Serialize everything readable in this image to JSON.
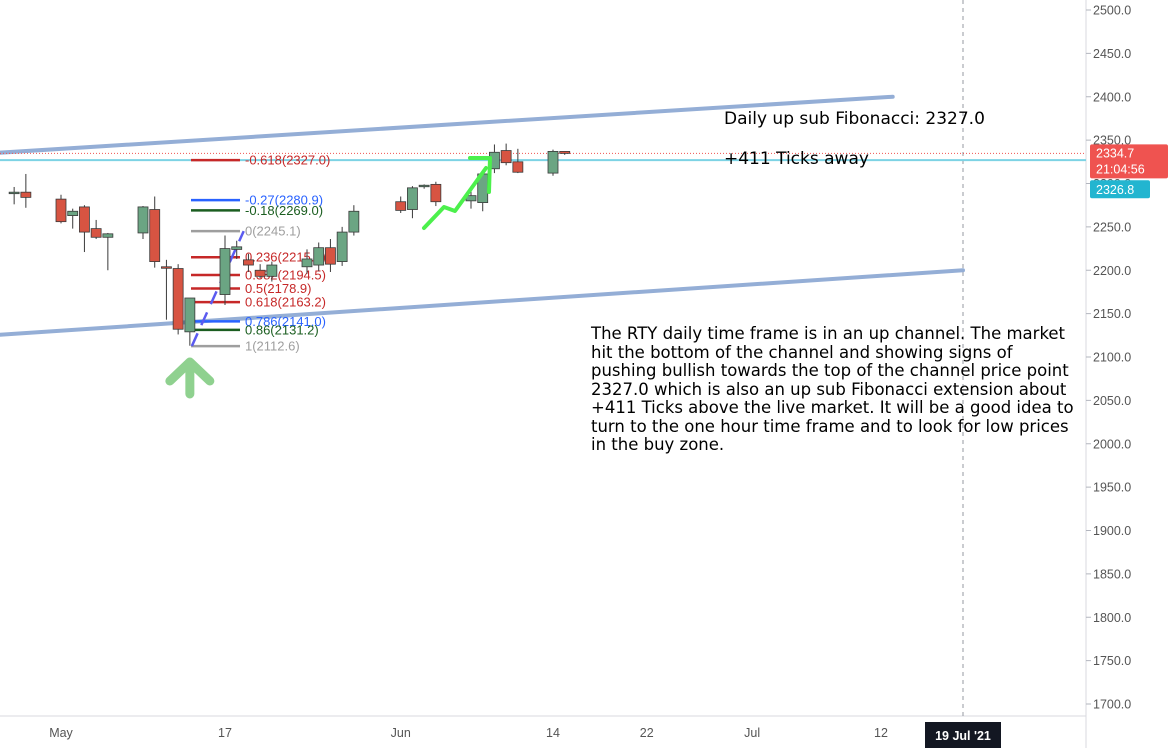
{
  "chart_data": {
    "type": "candlestick",
    "symbol": "RTY",
    "timeframe": "daily",
    "price_axis": {
      "ylim": [
        1680,
        2520
      ],
      "ticks": [
        2500.0,
        2450.0,
        2400.0,
        2350.0,
        2300.0,
        2250.0,
        2200.0,
        2150.0,
        2100.0,
        2050.0,
        2000.0,
        1950.0,
        1900.0,
        1850.0,
        1800.0,
        1750.0,
        1700.0
      ]
    },
    "time_axis": {
      "ticks": [
        {
          "label": "May",
          "date": "2021-05-03"
        },
        {
          "label": "17",
          "date": "2021-05-17"
        },
        {
          "label": "Jun",
          "date": "2021-06-01"
        },
        {
          "label": "14",
          "date": "2021-06-14"
        },
        {
          "label": "22",
          "date": "2021-06-22"
        },
        {
          "label": "Jul",
          "date": "2021-07-01"
        },
        {
          "label": "12",
          "date": "2021-07-12"
        }
      ],
      "cursor_label": "19 Jul '21",
      "cursor_date": "2021-07-19"
    },
    "candles": [
      {
        "date": "2021-04-29",
        "open": 2289,
        "high": 2296,
        "low": 2276,
        "close": 2290
      },
      {
        "date": "2021-04-30",
        "open": 2290,
        "high": 2311,
        "low": 2272,
        "close": 2284
      },
      {
        "date": "2021-05-03",
        "open": 2282,
        "high": 2287,
        "low": 2254,
        "close": 2256
      },
      {
        "date": "2021-05-04",
        "open": 2263,
        "high": 2271,
        "low": 2248,
        "close": 2268
      },
      {
        "date": "2021-05-05",
        "open": 2273,
        "high": 2275,
        "low": 2221,
        "close": 2244
      },
      {
        "date": "2021-05-06",
        "open": 2248,
        "high": 2258,
        "low": 2236,
        "close": 2238
      },
      {
        "date": "2021-05-07",
        "open": 2238,
        "high": 2243,
        "low": 2200,
        "close": 2242
      },
      {
        "date": "2021-05-10",
        "open": 2243,
        "high": 2274,
        "low": 2236,
        "close": 2273
      },
      {
        "date": "2021-05-11",
        "open": 2270,
        "high": 2285,
        "low": 2203,
        "close": 2210
      },
      {
        "date": "2021-05-12",
        "open": 2204,
        "high": 2212,
        "low": 2143,
        "close": 2203
      },
      {
        "date": "2021-05-13",
        "open": 2202,
        "high": 2207,
        "low": 2126,
        "close": 2132
      },
      {
        "date": "2021-05-14",
        "open": 2129,
        "high": 2167,
        "low": 2113,
        "close": 2168
      },
      {
        "date": "2021-05-17",
        "open": 2172,
        "high": 2240,
        "low": 2160,
        "close": 2225
      },
      {
        "date": "2021-05-18",
        "open": 2224,
        "high": 2234,
        "low": 2213,
        "close": 2227
      },
      {
        "date": "2021-05-19",
        "open": 2212,
        "high": 2219,
        "low": 2198,
        "close": 2206
      },
      {
        "date": "2021-05-20",
        "open": 2200,
        "high": 2207,
        "low": 2191,
        "close": 2193
      },
      {
        "date": "2021-05-21",
        "open": 2193,
        "high": 2210,
        "low": 2187,
        "close": 2206
      },
      {
        "date": "2021-05-24",
        "open": 2204,
        "high": 2224,
        "low": 2196,
        "close": 2213
      },
      {
        "date": "2021-05-25",
        "open": 2206,
        "high": 2232,
        "low": 2199,
        "close": 2226
      },
      {
        "date": "2021-05-26",
        "open": 2226,
        "high": 2236,
        "low": 2198,
        "close": 2207
      },
      {
        "date": "2021-05-27",
        "open": 2210,
        "high": 2250,
        "low": 2205,
        "close": 2244
      },
      {
        "date": "2021-05-28",
        "open": 2244,
        "high": 2275,
        "low": 2240,
        "close": 2268
      },
      {
        "date": "2021-06-01",
        "open": 2279,
        "high": 2285,
        "low": 2266,
        "close": 2269
      },
      {
        "date": "2021-06-02",
        "open": 2270,
        "high": 2297,
        "low": 2260,
        "close": 2295
      },
      {
        "date": "2021-06-03",
        "open": 2297,
        "high": 2299,
        "low": 2294,
        "close": 2298
      },
      {
        "date": "2021-06-04",
        "open": 2299,
        "high": 2302,
        "low": 2274,
        "close": 2279
      },
      {
        "date": "2021-06-07",
        "open": 2280,
        "high": 2297,
        "low": 2271,
        "close": 2286
      },
      {
        "date": "2021-06-08",
        "open": 2278,
        "high": 2313,
        "low": 2268,
        "close": 2311
      },
      {
        "date": "2021-06-09",
        "open": 2317,
        "high": 2345,
        "low": 2312,
        "close": 2336
      },
      {
        "date": "2021-06-10",
        "open": 2338,
        "high": 2346,
        "low": 2321,
        "close": 2324
      },
      {
        "date": "2021-06-11",
        "open": 2325,
        "high": 2340,
        "low": 2312,
        "close": 2313
      },
      {
        "date": "2021-06-14",
        "open": 2312,
        "high": 2339,
        "low": 2309,
        "close": 2337
      },
      {
        "date": "2021-06-15",
        "open": 2337,
        "high": 2337,
        "low": 2333,
        "close": 2334.7
      }
    ],
    "price_labels": [
      {
        "value": "2334.7",
        "countdown": "21:04:56",
        "price": 2334.7,
        "color": "#ef5350"
      },
      {
        "value": "2326.8",
        "price": 2326.8,
        "color": "#22b5d0"
      }
    ],
    "fibonacci_levels": [
      {
        "label": "-0.618(2327.0)",
        "price": 2327.0,
        "color": "#c62828"
      },
      {
        "label": "-0.27(2280.9)",
        "price": 2280.9,
        "color": "#2962ff"
      },
      {
        "label": "-0.18(2269.0)",
        "price": 2269.0,
        "color": "#1b5e20"
      },
      {
        "label": "0(2245.1)",
        "price": 2245.1,
        "color": "#9e9e9e"
      },
      {
        "label": "0.236(2215.0)",
        "price": 2215.0,
        "color": "#c62828"
      },
      {
        "label": "0.382(2194.5)",
        "price": 2194.5,
        "color": "#c62828"
      },
      {
        "label": "0.5(2178.9)",
        "price": 2178.9,
        "color": "#c62828"
      },
      {
        "label": "0.618(2163.2)",
        "price": 2163.2,
        "color": "#c62828"
      },
      {
        "label": "0.786(2141.0)",
        "price": 2141.0,
        "color": "#2962ff"
      },
      {
        "label": "0.86(2131.2)",
        "price": 2131.2,
        "color": "#1b5e20"
      },
      {
        "label": "1(2112.6)",
        "price": 2112.6,
        "color": "#9e9e9e"
      }
    ],
    "channel_lines": [
      {
        "name": "upper",
        "from": {
          "date": "2021-04-26",
          "price": 2334
        },
        "to": {
          "date": "2021-07-13",
          "price": 2400
        },
        "color": "#94aed6"
      },
      {
        "name": "lower",
        "from": {
          "date": "2021-04-26",
          "price": 2124
        },
        "to": {
          "date": "2021-07-19",
          "price": 2200
        },
        "color": "#94aed6"
      }
    ],
    "target_line": {
      "price": 2327.0,
      "color": "#7dd3e4"
    },
    "current_price_line": {
      "price": 2334.7,
      "color": "#ef5350"
    },
    "annotations": {
      "fib_title": "Daily up sub Fibonacci: 2327.0",
      "ticks_away": "+411 Ticks away",
      "analysis": "The RTY daily time frame is in an up channel. The market hit the bottom of the channel and showing signs of pushing bullish towards the top of the channel price point 2327.0 which is also an up sub Fibonacci extension about +411 Ticks above the live market. It will be a good idea to turn to the one hour time frame and to look for low prices in the buy zone."
    },
    "colors": {
      "up": "#6ba583",
      "down": "#d75442",
      "wick": "#3a3a3a",
      "axis_text": "#555555",
      "cursor_bg": "#131722",
      "arrow_up": "#8fd18f",
      "swing_up": "#4cf04c",
      "fib_trend": "#5b5bf0"
    }
  }
}
